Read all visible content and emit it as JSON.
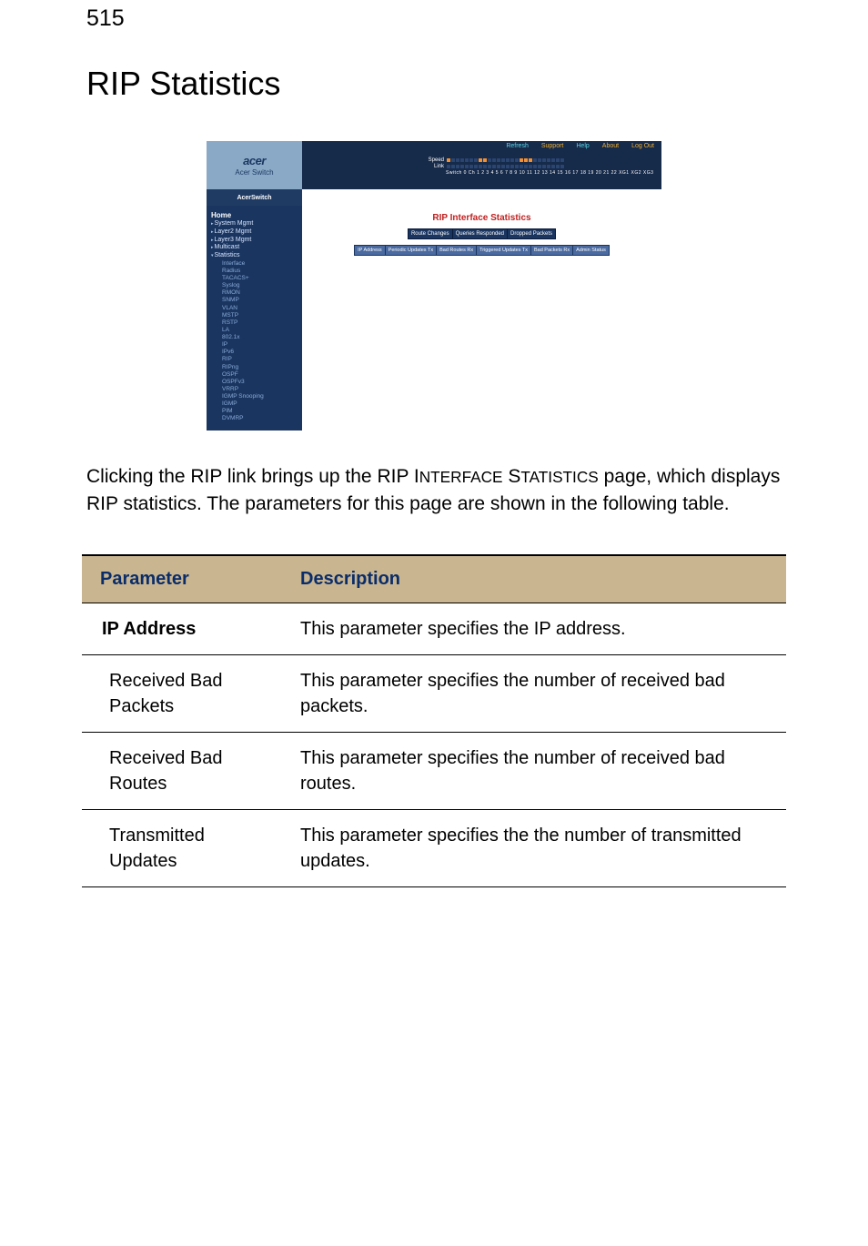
{
  "page_number": "515",
  "title": "RIP Statistics",
  "screenshot": {
    "brand": "acer",
    "brand_sub": "Acer Switch",
    "top_links": [
      "Refresh",
      "Support",
      "Help",
      "About",
      "Log Out"
    ],
    "port_rows": [
      {
        "label": "Speed",
        "on_idx": [
          0,
          7,
          8,
          16,
          17,
          18
        ]
      },
      {
        "label": "Link",
        "on_idx": []
      }
    ],
    "port_numbers": "Switch 0 Ch 1 2 3 4 5 6 7 8 9 10 11 12 13 14 15 16 17 18 19 20 21 22 XG1 XG2 XG3",
    "divider_label": "AcerSwitch",
    "nav": [
      {
        "cls": "nav-home",
        "label": "Home"
      },
      {
        "cls": "nav-top nav-mark",
        "label": "System Mgmt"
      },
      {
        "cls": "nav-top nav-mark",
        "label": "Layer2 Mgmt"
      },
      {
        "cls": "nav-top nav-mark",
        "label": "Layer3 Mgmt"
      },
      {
        "cls": "nav-top nav-mark",
        "label": "Multicast"
      },
      {
        "cls": "nav-top nav-open",
        "label": "Statistics"
      },
      {
        "cls": "nav-sub2",
        "label": "Interface"
      },
      {
        "cls": "nav-sub2",
        "label": "Radius"
      },
      {
        "cls": "nav-sub2",
        "label": "TACACS+"
      },
      {
        "cls": "nav-sub2",
        "label": "Syslog"
      },
      {
        "cls": "nav-sub2",
        "label": "RMON"
      },
      {
        "cls": "nav-sub2",
        "label": "SNMP"
      },
      {
        "cls": "nav-sub2",
        "label": "VLAN"
      },
      {
        "cls": "nav-sub2",
        "label": "MSTP"
      },
      {
        "cls": "nav-sub2",
        "label": "RSTP"
      },
      {
        "cls": "nav-sub2",
        "label": "LA"
      },
      {
        "cls": "nav-sub2",
        "label": "802.1x"
      },
      {
        "cls": "nav-sub2",
        "label": "IP"
      },
      {
        "cls": "nav-sub2",
        "label": "IPv6"
      },
      {
        "cls": "nav-sub2",
        "label": "RIP"
      },
      {
        "cls": "nav-sub2",
        "label": "RIPng"
      },
      {
        "cls": "nav-sub2",
        "label": "OSPF"
      },
      {
        "cls": "nav-sub2",
        "label": "OSPFv3"
      },
      {
        "cls": "nav-sub2",
        "label": "VRRP"
      },
      {
        "cls": "nav-sub2",
        "label": "IGMP Snooping"
      },
      {
        "cls": "nav-sub2",
        "label": "IGMP"
      },
      {
        "cls": "nav-sub2",
        "label": "PIM"
      },
      {
        "cls": "nav-sub2",
        "label": "DVMRP"
      }
    ],
    "panel_title": "RIP Interface Statistics",
    "sub_headers": [
      "Route Changes",
      "Queries Responded",
      "Dropped Packets"
    ],
    "col_headers": [
      "IP Address",
      "Periodic Updates Tx",
      "Bad Routes Rx",
      "Triggered Updates Tx",
      "Bad Packets Rx",
      "Admin Status"
    ]
  },
  "body_text": "Clicking the RIP link brings up the RIP Interface Statistics page, which displays RIP statistics. The parameters for this page are shown in the following table.",
  "table": {
    "headers": [
      "Parameter",
      "Description"
    ],
    "rows": [
      {
        "param": "IP Address",
        "desc": "This parameter specifies the IP address."
      },
      {
        "param": "Received Bad Packets",
        "desc": "This parameter specifies the number of received bad packets."
      },
      {
        "param": "Received Bad Routes",
        "desc": "This parameter specifies the number of received bad routes."
      },
      {
        "param": "Transmitted Updates",
        "desc": "This parameter specifies the the number of transmitted updates."
      }
    ]
  }
}
